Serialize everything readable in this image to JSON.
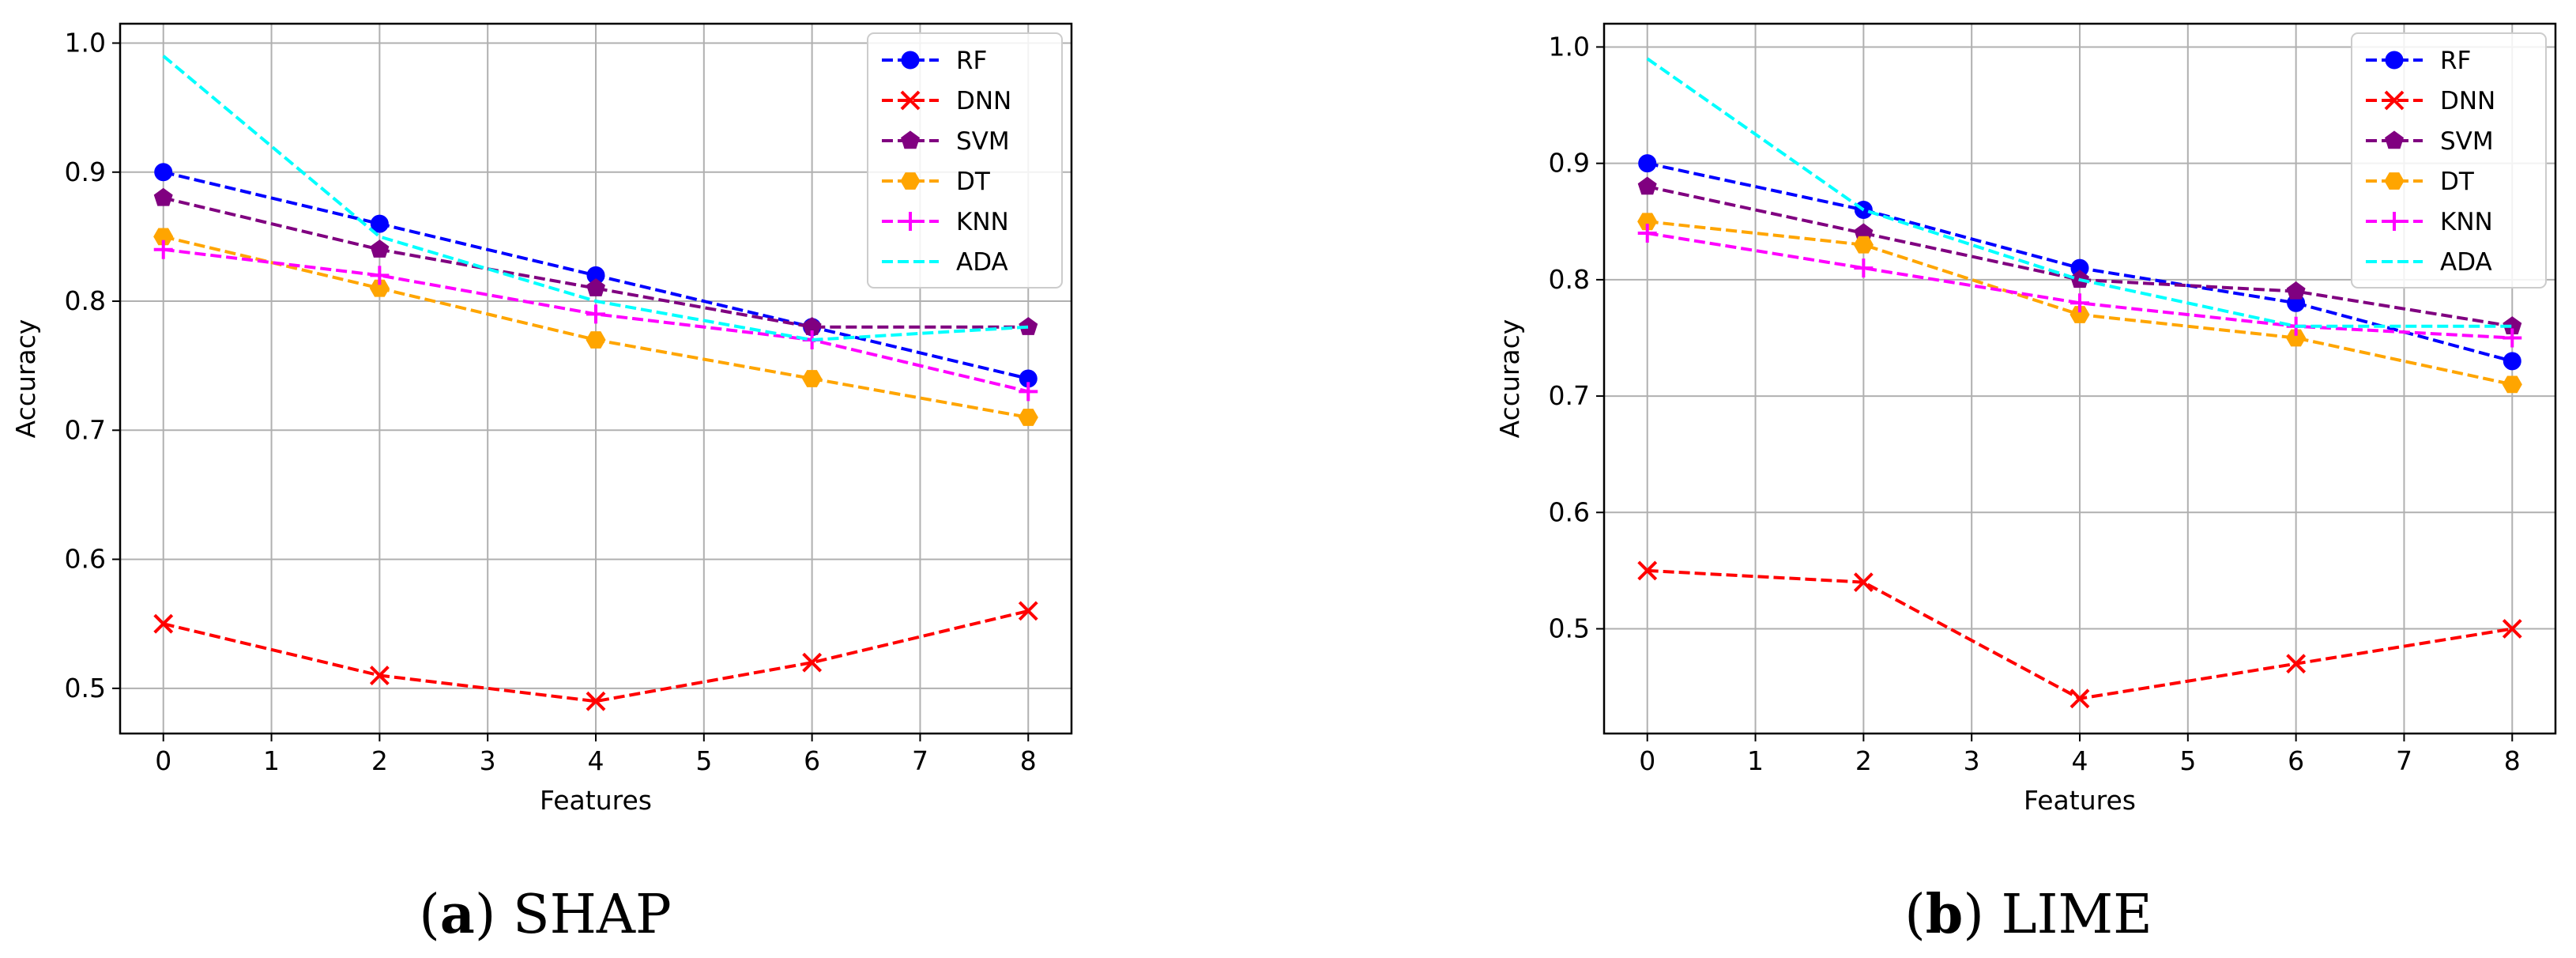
{
  "chart_data": [
    {
      "type": "line",
      "id": "shap",
      "caption_letter": "a",
      "caption_open": "(",
      "caption_close": ")",
      "caption_text": " SHAP",
      "xlabel": "Features",
      "ylabel": "Accuracy",
      "xlim": [
        -0.4,
        8.4
      ],
      "ylim": [
        0.465,
        1.015
      ],
      "xticks": [
        0,
        1,
        2,
        3,
        4,
        5,
        6,
        7,
        8
      ],
      "xtick_labels": [
        "0",
        "1",
        "2",
        "3",
        "4",
        "5",
        "6",
        "7",
        "8"
      ],
      "yticks": [
        0.5,
        0.6,
        0.7,
        0.8,
        0.9,
        1.0
      ],
      "ytick_labels": [
        "0.5",
        "0.6",
        "0.7",
        "0.8",
        "0.9",
        "1.0"
      ],
      "grid": true,
      "legend_position": "top-right",
      "x": [
        0,
        2,
        4,
        6,
        8
      ],
      "series": [
        {
          "name": "RF",
          "color": "#0000ff",
          "marker": "circle",
          "values": [
            0.9,
            0.86,
            0.82,
            0.78,
            0.74
          ]
        },
        {
          "name": "DNN",
          "color": "#ff0000",
          "marker": "x",
          "values": [
            0.55,
            0.51,
            0.49,
            0.52,
            0.56
          ]
        },
        {
          "name": "SVM",
          "color": "#800080",
          "marker": "pentagon",
          "values": [
            0.88,
            0.84,
            0.81,
            0.78,
            0.78
          ]
        },
        {
          "name": "DT",
          "color": "#ffa500",
          "marker": "hexagon",
          "values": [
            0.85,
            0.81,
            0.77,
            0.74,
            0.71
          ]
        },
        {
          "name": "KNN",
          "color": "#ff00ff",
          "marker": "plus",
          "values": [
            0.84,
            0.82,
            0.79,
            0.77,
            0.73
          ]
        },
        {
          "name": "ADA",
          "color": "#00ffff",
          "marker": "none",
          "values": [
            0.99,
            0.85,
            0.8,
            0.77,
            0.78
          ]
        }
      ]
    },
    {
      "type": "line",
      "id": "lime",
      "caption_letter": "b",
      "caption_open": "(",
      "caption_close": ")",
      "caption_text": " LIME",
      "xlabel": "Features",
      "ylabel": "Accuracy",
      "xlim": [
        -0.4,
        8.4
      ],
      "ylim": [
        0.41,
        1.02
      ],
      "xticks": [
        0,
        1,
        2,
        3,
        4,
        5,
        6,
        7,
        8
      ],
      "xtick_labels": [
        "0",
        "1",
        "2",
        "3",
        "4",
        "5",
        "6",
        "7",
        "8"
      ],
      "yticks": [
        0.5,
        0.6,
        0.7,
        0.8,
        0.9,
        1.0
      ],
      "ytick_labels": [
        "0.5",
        "0.6",
        "0.7",
        "0.8",
        "0.9",
        "1.0"
      ],
      "grid": true,
      "legend_position": "top-right",
      "x": [
        0,
        2,
        4,
        6,
        8
      ],
      "series": [
        {
          "name": "RF",
          "color": "#0000ff",
          "marker": "circle",
          "values": [
            0.9,
            0.86,
            0.81,
            0.78,
            0.73
          ]
        },
        {
          "name": "DNN",
          "color": "#ff0000",
          "marker": "x",
          "values": [
            0.55,
            0.54,
            0.44,
            0.47,
            0.5
          ]
        },
        {
          "name": "SVM",
          "color": "#800080",
          "marker": "pentagon",
          "values": [
            0.88,
            0.84,
            0.8,
            0.79,
            0.76
          ]
        },
        {
          "name": "DT",
          "color": "#ffa500",
          "marker": "hexagon",
          "values": [
            0.85,
            0.83,
            0.77,
            0.75,
            0.71
          ]
        },
        {
          "name": "KNN",
          "color": "#ff00ff",
          "marker": "plus",
          "values": [
            0.84,
            0.81,
            0.78,
            0.76,
            0.75
          ]
        },
        {
          "name": "ADA",
          "color": "#00ffff",
          "marker": "none",
          "values": [
            0.99,
            0.86,
            0.8,
            0.76,
            0.76
          ]
        }
      ]
    }
  ]
}
